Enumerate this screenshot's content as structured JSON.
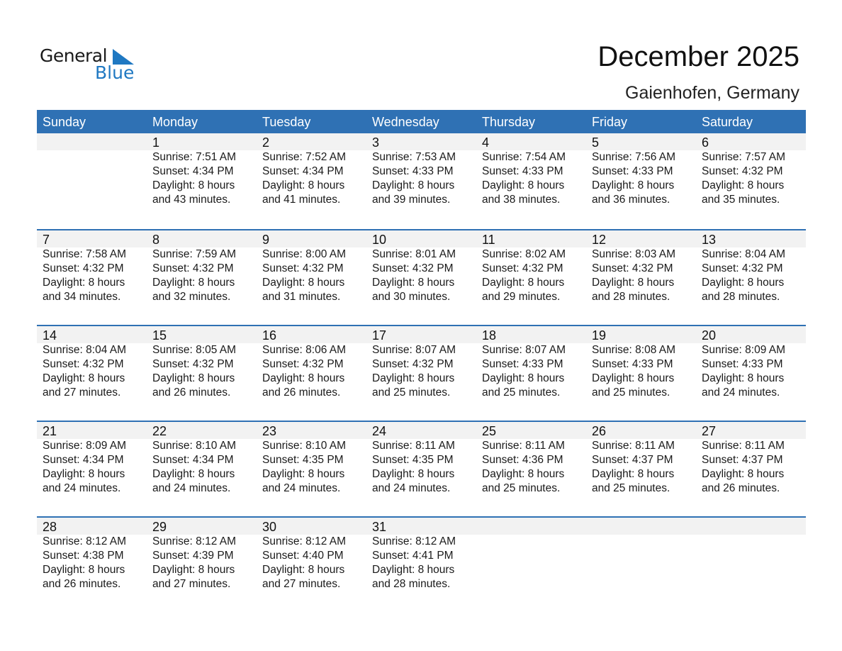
{
  "logo": {
    "text_general": "General",
    "text_blue": "Blue",
    "color": "#1f78c2"
  },
  "title": "December 2025",
  "location": "Gaienhofen, Germany",
  "colors": {
    "header": "#2f71b4",
    "band": "#f2f2f2"
  },
  "weekdays": [
    "Sunday",
    "Monday",
    "Tuesday",
    "Wednesday",
    "Thursday",
    "Friday",
    "Saturday"
  ],
  "weeks": [
    [
      null,
      {
        "day": "1",
        "sunrise": "Sunrise: 7:51 AM",
        "sunset": "Sunset: 4:34 PM",
        "daylight": "Daylight: 8 hours",
        "minutes": "and 43 minutes."
      },
      {
        "day": "2",
        "sunrise": "Sunrise: 7:52 AM",
        "sunset": "Sunset: 4:34 PM",
        "daylight": "Daylight: 8 hours",
        "minutes": "and 41 minutes."
      },
      {
        "day": "3",
        "sunrise": "Sunrise: 7:53 AM",
        "sunset": "Sunset: 4:33 PM",
        "daylight": "Daylight: 8 hours",
        "minutes": "and 39 minutes."
      },
      {
        "day": "4",
        "sunrise": "Sunrise: 7:54 AM",
        "sunset": "Sunset: 4:33 PM",
        "daylight": "Daylight: 8 hours",
        "minutes": "and 38 minutes."
      },
      {
        "day": "5",
        "sunrise": "Sunrise: 7:56 AM",
        "sunset": "Sunset: 4:33 PM",
        "daylight": "Daylight: 8 hours",
        "minutes": "and 36 minutes."
      },
      {
        "day": "6",
        "sunrise": "Sunrise: 7:57 AM",
        "sunset": "Sunset: 4:32 PM",
        "daylight": "Daylight: 8 hours",
        "minutes": "and 35 minutes."
      }
    ],
    [
      {
        "day": "7",
        "sunrise": "Sunrise: 7:58 AM",
        "sunset": "Sunset: 4:32 PM",
        "daylight": "Daylight: 8 hours",
        "minutes": "and 34 minutes."
      },
      {
        "day": "8",
        "sunrise": "Sunrise: 7:59 AM",
        "sunset": "Sunset: 4:32 PM",
        "daylight": "Daylight: 8 hours",
        "minutes": "and 32 minutes."
      },
      {
        "day": "9",
        "sunrise": "Sunrise: 8:00 AM",
        "sunset": "Sunset: 4:32 PM",
        "daylight": "Daylight: 8 hours",
        "minutes": "and 31 minutes."
      },
      {
        "day": "10",
        "sunrise": "Sunrise: 8:01 AM",
        "sunset": "Sunset: 4:32 PM",
        "daylight": "Daylight: 8 hours",
        "minutes": "and 30 minutes."
      },
      {
        "day": "11",
        "sunrise": "Sunrise: 8:02 AM",
        "sunset": "Sunset: 4:32 PM",
        "daylight": "Daylight: 8 hours",
        "minutes": "and 29 minutes."
      },
      {
        "day": "12",
        "sunrise": "Sunrise: 8:03 AM",
        "sunset": "Sunset: 4:32 PM",
        "daylight": "Daylight: 8 hours",
        "minutes": "and 28 minutes."
      },
      {
        "day": "13",
        "sunrise": "Sunrise: 8:04 AM",
        "sunset": "Sunset: 4:32 PM",
        "daylight": "Daylight: 8 hours",
        "minutes": "and 28 minutes."
      }
    ],
    [
      {
        "day": "14",
        "sunrise": "Sunrise: 8:04 AM",
        "sunset": "Sunset: 4:32 PM",
        "daylight": "Daylight: 8 hours",
        "minutes": "and 27 minutes."
      },
      {
        "day": "15",
        "sunrise": "Sunrise: 8:05 AM",
        "sunset": "Sunset: 4:32 PM",
        "daylight": "Daylight: 8 hours",
        "minutes": "and 26 minutes."
      },
      {
        "day": "16",
        "sunrise": "Sunrise: 8:06 AM",
        "sunset": "Sunset: 4:32 PM",
        "daylight": "Daylight: 8 hours",
        "minutes": "and 26 minutes."
      },
      {
        "day": "17",
        "sunrise": "Sunrise: 8:07 AM",
        "sunset": "Sunset: 4:32 PM",
        "daylight": "Daylight: 8 hours",
        "minutes": "and 25 minutes."
      },
      {
        "day": "18",
        "sunrise": "Sunrise: 8:07 AM",
        "sunset": "Sunset: 4:33 PM",
        "daylight": "Daylight: 8 hours",
        "minutes": "and 25 minutes."
      },
      {
        "day": "19",
        "sunrise": "Sunrise: 8:08 AM",
        "sunset": "Sunset: 4:33 PM",
        "daylight": "Daylight: 8 hours",
        "minutes": "and 25 minutes."
      },
      {
        "day": "20",
        "sunrise": "Sunrise: 8:09 AM",
        "sunset": "Sunset: 4:33 PM",
        "daylight": "Daylight: 8 hours",
        "minutes": "and 24 minutes."
      }
    ],
    [
      {
        "day": "21",
        "sunrise": "Sunrise: 8:09 AM",
        "sunset": "Sunset: 4:34 PM",
        "daylight": "Daylight: 8 hours",
        "minutes": "and 24 minutes."
      },
      {
        "day": "22",
        "sunrise": "Sunrise: 8:10 AM",
        "sunset": "Sunset: 4:34 PM",
        "daylight": "Daylight: 8 hours",
        "minutes": "and 24 minutes."
      },
      {
        "day": "23",
        "sunrise": "Sunrise: 8:10 AM",
        "sunset": "Sunset: 4:35 PM",
        "daylight": "Daylight: 8 hours",
        "minutes": "and 24 minutes."
      },
      {
        "day": "24",
        "sunrise": "Sunrise: 8:11 AM",
        "sunset": "Sunset: 4:35 PM",
        "daylight": "Daylight: 8 hours",
        "minutes": "and 24 minutes."
      },
      {
        "day": "25",
        "sunrise": "Sunrise: 8:11 AM",
        "sunset": "Sunset: 4:36 PM",
        "daylight": "Daylight: 8 hours",
        "minutes": "and 25 minutes."
      },
      {
        "day": "26",
        "sunrise": "Sunrise: 8:11 AM",
        "sunset": "Sunset: 4:37 PM",
        "daylight": "Daylight: 8 hours",
        "minutes": "and 25 minutes."
      },
      {
        "day": "27",
        "sunrise": "Sunrise: 8:11 AM",
        "sunset": "Sunset: 4:37 PM",
        "daylight": "Daylight: 8 hours",
        "minutes": "and 26 minutes."
      }
    ],
    [
      {
        "day": "28",
        "sunrise": "Sunrise: 8:12 AM",
        "sunset": "Sunset: 4:38 PM",
        "daylight": "Daylight: 8 hours",
        "minutes": "and 26 minutes."
      },
      {
        "day": "29",
        "sunrise": "Sunrise: 8:12 AM",
        "sunset": "Sunset: 4:39 PM",
        "daylight": "Daylight: 8 hours",
        "minutes": "and 27 minutes."
      },
      {
        "day": "30",
        "sunrise": "Sunrise: 8:12 AM",
        "sunset": "Sunset: 4:40 PM",
        "daylight": "Daylight: 8 hours",
        "minutes": "and 27 minutes."
      },
      {
        "day": "31",
        "sunrise": "Sunrise: 8:12 AM",
        "sunset": "Sunset: 4:41 PM",
        "daylight": "Daylight: 8 hours",
        "minutes": "and 28 minutes."
      },
      null,
      null,
      null
    ]
  ]
}
